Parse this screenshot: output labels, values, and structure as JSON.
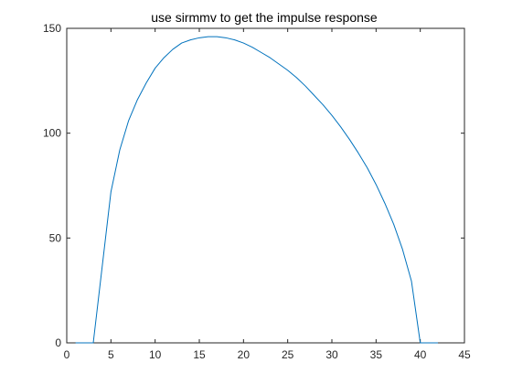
{
  "chart_data": {
    "type": "line",
    "title": "use sirmmv to get the impulse response",
    "xlabel": "",
    "ylabel": "",
    "xlim": [
      0,
      45
    ],
    "ylim": [
      0,
      150
    ],
    "xticks": [
      0,
      5,
      10,
      15,
      20,
      25,
      30,
      35,
      40,
      45
    ],
    "yticks": [
      0,
      50,
      100,
      150
    ],
    "grid": false,
    "box": true,
    "series": [
      {
        "color": "#0072BD",
        "x": [
          1,
          2,
          3,
          4,
          5,
          6,
          7,
          8,
          9,
          10,
          11,
          12,
          13,
          14,
          15,
          16,
          17,
          18,
          19,
          20,
          21,
          22,
          23,
          24,
          25,
          26,
          27,
          28,
          29,
          30,
          31,
          32,
          33,
          34,
          35,
          36,
          37,
          38,
          39,
          40,
          41,
          42
        ],
        "y": [
          0,
          0,
          0,
          36,
          72,
          92,
          106,
          116,
          124,
          131,
          136,
          140,
          143,
          144.5,
          145.5,
          146,
          146,
          145.5,
          144.5,
          143,
          141,
          138.5,
          136,
          133,
          130,
          126.5,
          122.5,
          118,
          113.5,
          108.5,
          103,
          97,
          90.5,
          83.5,
          75.5,
          66.5,
          56.5,
          44.5,
          29.5,
          0,
          0,
          0
        ]
      }
    ]
  }
}
